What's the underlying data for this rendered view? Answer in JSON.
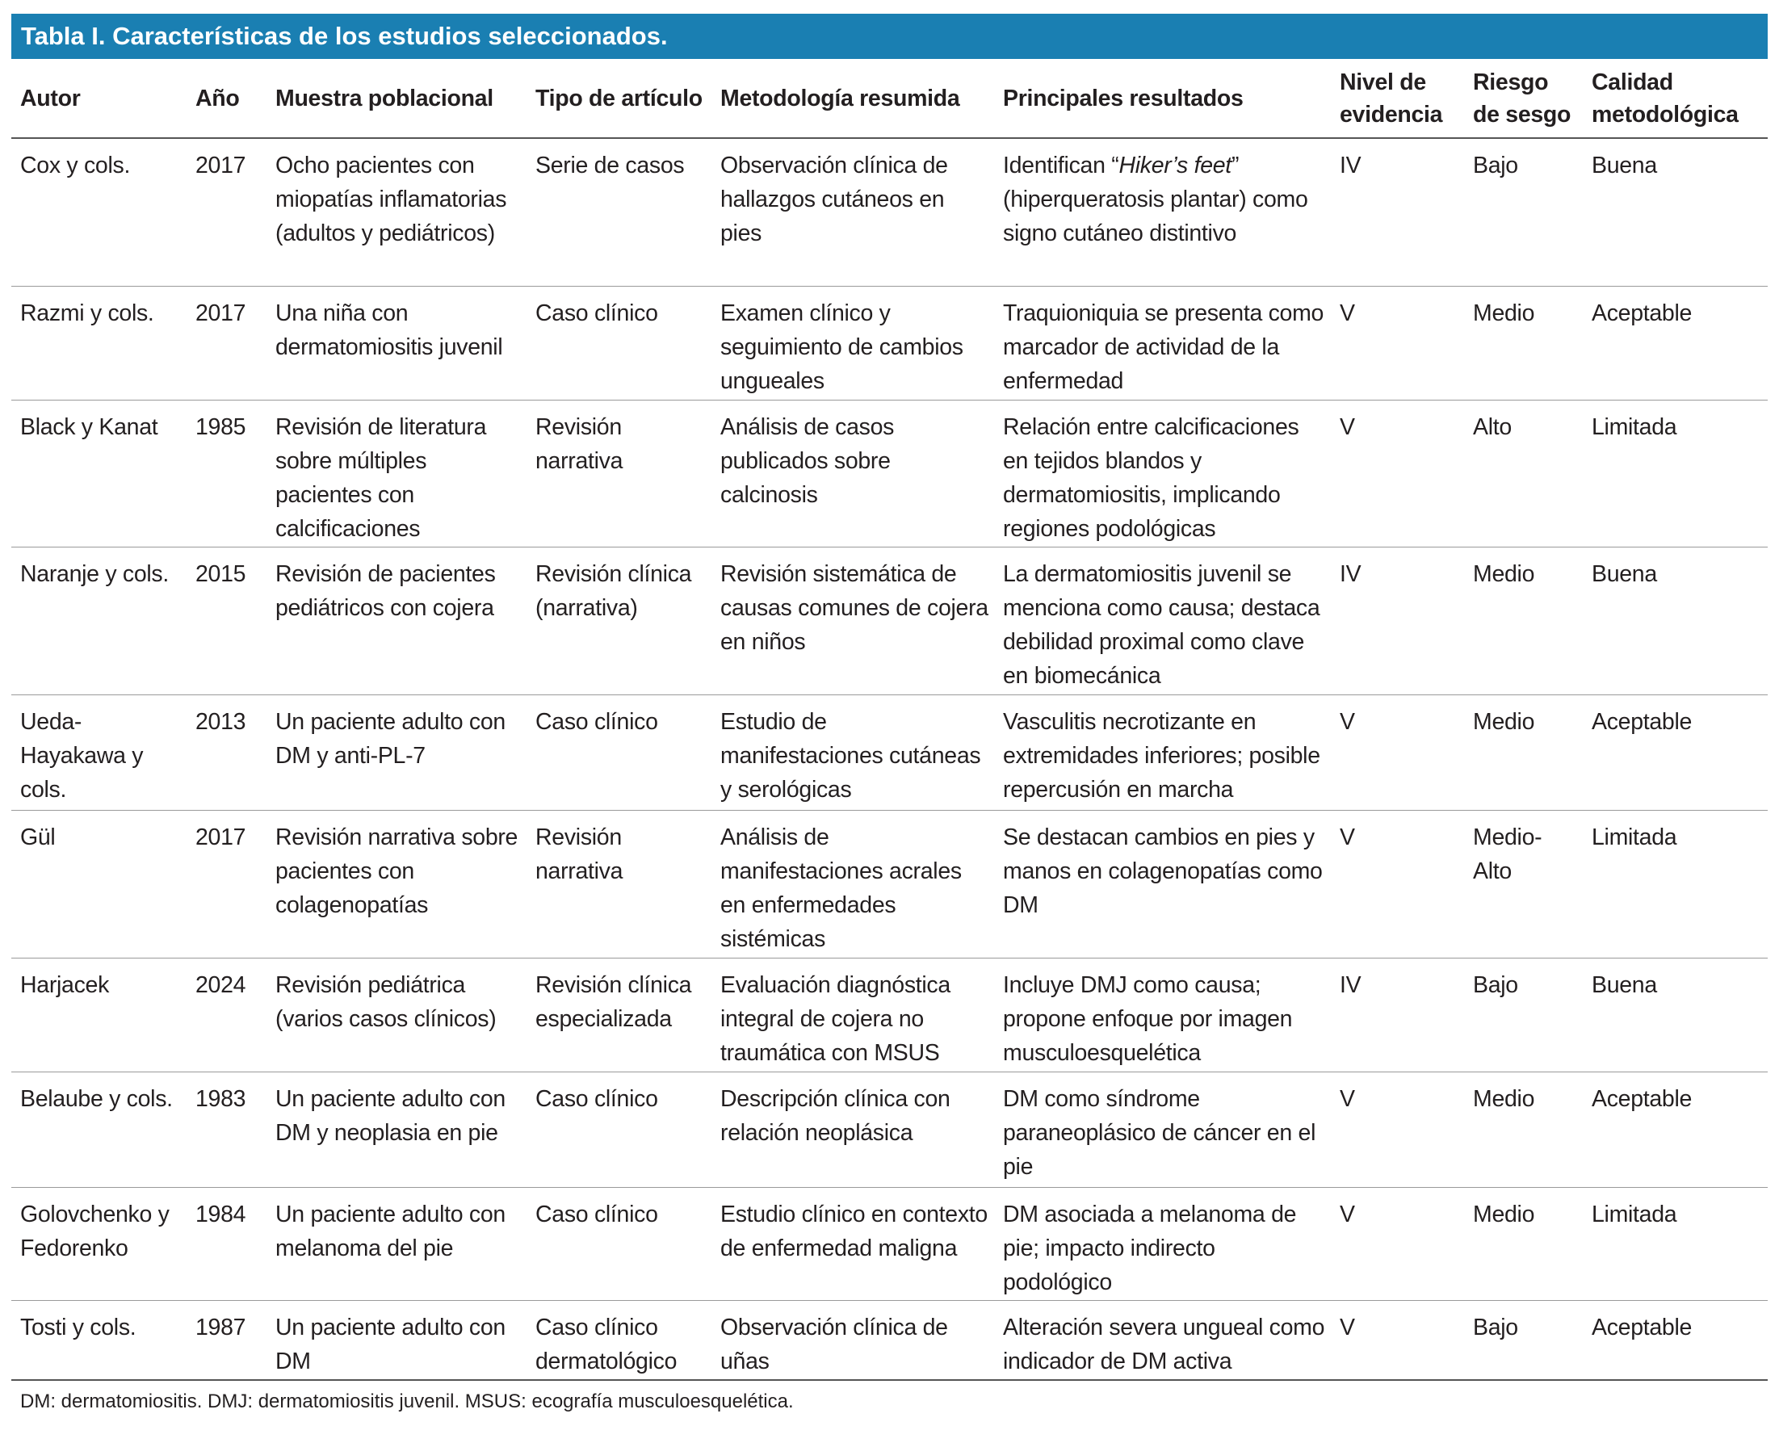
{
  "title": "Tabla I. Características de los estudios seleccionados.",
  "table": {
    "header": [
      "Autor",
      "Año",
      "Muestra poblacional",
      "Tipo de artículo",
      "Metodología resumida",
      "Principales resultados",
      "Nivel de evidencia",
      "Riesgo de sesgo",
      "Calidad metodológica"
    ],
    "rows": [
      [
        "Cox y cols.",
        "2017",
        "Ocho pacientes con miopatías inflamatorias (adultos y pediátricos)",
        "Serie de casos",
        "Observación clínica de hallazgos cutáneos en pies",
        [
          "Identifican “",
          "Hiker’s feet",
          "” (hiperqueratosis plantar) como signo cutáneo distintivo"
        ],
        "IV",
        "Bajo",
        "Buena"
      ],
      [
        "Razmi y cols.",
        "2017",
        "Una niña con dermatomiositis juvenil",
        "Caso clínico",
        "Examen clínico y seguimiento de cambios ungueales",
        "Traquioniquia se presenta como marcador de actividad de la enfermedad",
        "V",
        "Medio",
        "Aceptable"
      ],
      [
        "Black y Kanat",
        "1985",
        "Revisión de literatura sobre múltiples pacientes con calcificaciones",
        "Revisión narrativa",
        "Análisis de casos publicados sobre calcinosis",
        "Relación entre calcificaciones en tejidos blandos y dermatomiositis, implicando regiones podológicas",
        "V",
        "Alto",
        "Limitada"
      ],
      [
        "Naranje y cols.",
        "2015",
        "Revisión de pacientes pediátricos con cojera",
        "Revisión clínica (narrativa)",
        "Revisión sistemática de causas comunes de cojera en niños",
        "La dermatomiositis juvenil se menciona como causa; destaca debilidad proximal como clave en biomecánica",
        "IV",
        "Medio",
        "Buena"
      ],
      [
        "Ueda-Hayakawa y cols.",
        "2013",
        "Un paciente adulto con DM y anti-PL-7",
        "Caso clínico",
        "Estudio de manifestaciones cutáneas y serológicas",
        "Vasculitis necrotizante en extremidades inferiores; posible repercusión en marcha",
        "V",
        "Medio",
        "Aceptable"
      ],
      [
        "Gül",
        "2017",
        "Revisión narrativa sobre pacientes con colagenopatías",
        "Revisión narrativa",
        "Análisis de manifestaciones acrales en enfermedades sistémicas",
        "Se destacan cambios en pies y manos en colagenopatías como DM",
        "V",
        "Medio-Alto",
        "Limitada"
      ],
      [
        "Harjacek",
        "2024",
        "Revisión pediátrica (varios casos clínicos)",
        "Revisión clínica especializada",
        "Evaluación diagnóstica integral de cojera no traumática con MSUS",
        "Incluye DMJ como causa; propone enfoque por imagen musculoesquelética",
        "IV",
        "Bajo",
        "Buena"
      ],
      [
        "Belaube y cols.",
        "1983",
        "Un paciente adulto con DM y neoplasia en pie",
        "Caso clínico",
        "Descripción clínica con relación neoplásica",
        "DM como síndrome paraneoplásico de cáncer en el pie",
        "V",
        "Medio",
        "Aceptable"
      ],
      [
        "Golovchenko y Fedorenko",
        "1984",
        "Un paciente adulto con melanoma del pie",
        "Caso clínico",
        "Estudio clínico en contexto de enfermedad maligna",
        "DM asociada a melanoma de pie; impacto indirecto podológico",
        "V",
        "Medio",
        "Limitada"
      ],
      [
        "Tosti y cols.",
        "1987",
        "Un paciente adulto con DM",
        "Caso clínico dermatológico",
        "Observación clínica de uñas",
        "Alteración severa ungueal como indicador de DM activa",
        "V",
        "Bajo",
        "Aceptable"
      ]
    ]
  },
  "footnote": "DM: dermatomiositis. DMJ: dermatomiositis juvenil. MSUS: ecografía musculoesquelética."
}
